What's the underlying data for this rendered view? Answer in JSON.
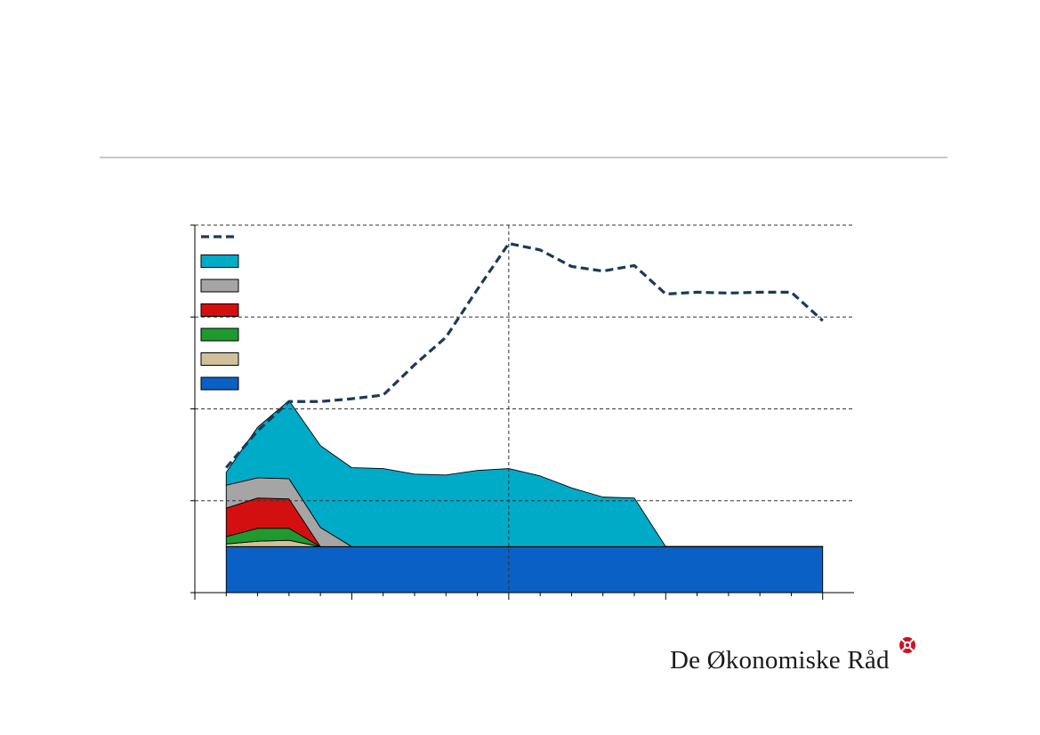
{
  "logo": {
    "text": "De Økonomiske Råd"
  },
  "colors": {
    "rule": "#c8c8c8",
    "line": "#1a3a5a",
    "grid": "#333333",
    "logo_mark": "#cc1122"
  },
  "chart_data": {
    "type": "area",
    "title": "",
    "xlabel": "",
    "ylabel": "",
    "x": [
      0,
      1,
      2,
      3,
      4,
      5,
      6,
      7,
      8,
      9,
      10,
      11,
      12,
      13,
      14,
      15,
      16,
      17,
      18,
      19
    ],
    "x_range": [
      -1,
      20
    ],
    "ylim": [
      0,
      4
    ],
    "y_gridlines": [
      1,
      2,
      3,
      4
    ],
    "x_major_ticks": [
      4,
      9,
      14,
      19
    ],
    "x_vline_at": 9,
    "legend_position": "top-left",
    "stacked": true,
    "series": [
      {
        "key": "blue",
        "color": "#0a60c4",
        "values": [
          0.5,
          0.5,
          0.5,
          0.5,
          0.5,
          0.5,
          0.5,
          0.5,
          0.5,
          0.5,
          0.5,
          0.5,
          0.5,
          0.5,
          0.5,
          0.5,
          0.5,
          0.5,
          0.5,
          0.5
        ]
      },
      {
        "key": "tan",
        "color": "#d1c09a",
        "values": [
          0.03,
          0.06,
          0.07,
          0,
          0,
          0,
          0,
          0,
          0,
          0,
          0,
          0,
          0,
          0,
          0,
          0,
          0,
          0,
          0,
          0
        ]
      },
      {
        "key": "green",
        "color": "#1f9a2e",
        "values": [
          0.08,
          0.14,
          0.13,
          0,
          0,
          0,
          0,
          0,
          0,
          0,
          0,
          0,
          0,
          0,
          0,
          0,
          0,
          0,
          0,
          0
        ]
      },
      {
        "key": "red",
        "color": "#d40f0f",
        "values": [
          0.31,
          0.33,
          0.32,
          0,
          0,
          0,
          0,
          0,
          0,
          0,
          0,
          0,
          0,
          0,
          0,
          0,
          0,
          0,
          0,
          0
        ]
      },
      {
        "key": "gray",
        "color": "#a5a5a5",
        "values": [
          0.25,
          0.22,
          0.22,
          0.21,
          0,
          0,
          0,
          0,
          0,
          0,
          0,
          0,
          0,
          0,
          0,
          0,
          0,
          0,
          0,
          0
        ]
      },
      {
        "key": "cyan",
        "color": "#00abc8",
        "values": [
          0.14,
          0.55,
          0.85,
          0.89,
          0.86,
          0.85,
          0.79,
          0.78,
          0.83,
          0.85,
          0.77,
          0.64,
          0.54,
          0.53,
          0,
          0,
          0,
          0,
          0,
          0
        ]
      }
    ],
    "line_series": {
      "key": "total",
      "style": "dashed",
      "color": "#1a3a5a",
      "values": [
        1.36,
        1.76,
        2.08,
        2.08,
        2.11,
        2.15,
        2.48,
        2.78,
        3.3,
        3.8,
        3.73,
        3.55,
        3.5,
        3.56,
        3.25,
        3.27,
        3.26,
        3.27,
        3.27,
        2.96
      ]
    },
    "legend": [
      {
        "key": "total",
        "kind": "line",
        "color": "#1a3a5a"
      },
      {
        "key": "cyan",
        "kind": "patch",
        "color": "#00abc8"
      },
      {
        "key": "gray",
        "kind": "patch",
        "color": "#a5a5a5"
      },
      {
        "key": "red",
        "kind": "patch",
        "color": "#d40f0f"
      },
      {
        "key": "green",
        "kind": "patch",
        "color": "#1f9a2e"
      },
      {
        "key": "tan",
        "kind": "patch",
        "color": "#d1c09a"
      },
      {
        "key": "blue",
        "kind": "patch",
        "color": "#0a60c4"
      }
    ]
  }
}
